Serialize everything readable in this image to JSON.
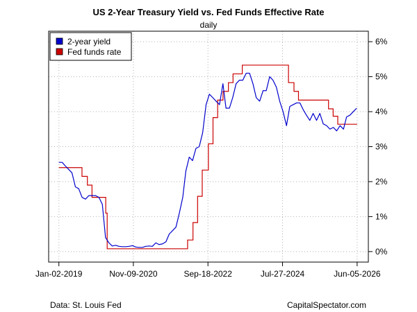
{
  "chart_data": {
    "type": "line",
    "title": "US 2-Year Treasury Yield vs. Fed Funds Effective Rate",
    "subtitle": "daily",
    "x_tick_labels": [
      "Jan-02-2019",
      "Nov-09-2020",
      "Sep-18-2022",
      "Jul-27-2024",
      "Jun-05-2026"
    ],
    "y_tick_labels": [
      "0%",
      "1%",
      "2%",
      "3%",
      "4%",
      "5%",
      "6%"
    ],
    "y_ticks": [
      0,
      1,
      2,
      3,
      4,
      5,
      6
    ],
    "ylim": [
      -0.3,
      6.3
    ],
    "xlim": [
      "2018-10-01",
      "2026-09-15"
    ],
    "grid": true,
    "legend_position": "top-left",
    "source_left": "Data: St. Louis Fed",
    "source_right": "CapitalSpectator.com",
    "series": [
      {
        "name": "2-year yield",
        "color": "#0000cc",
        "dates": [
          "2019-01-02",
          "2019-02-01",
          "2019-03-01",
          "2019-04-01",
          "2019-05-01",
          "2019-06-01",
          "2019-07-01",
          "2019-08-01",
          "2019-09-01",
          "2019-10-01",
          "2019-11-01",
          "2019-12-01",
          "2020-01-01",
          "2020-02-01",
          "2020-03-01",
          "2020-04-01",
          "2020-05-01",
          "2020-06-01",
          "2020-07-01",
          "2020-08-01",
          "2020-09-01",
          "2020-10-01",
          "2020-11-01",
          "2020-12-01",
          "2021-01-01",
          "2021-02-01",
          "2021-03-01",
          "2021-04-01",
          "2021-05-01",
          "2021-06-01",
          "2021-07-01",
          "2021-08-01",
          "2021-09-01",
          "2021-10-01",
          "2021-11-01",
          "2021-12-01",
          "2022-01-01",
          "2022-02-01",
          "2022-03-01",
          "2022-04-01",
          "2022-05-01",
          "2022-06-01",
          "2022-07-01",
          "2022-08-01",
          "2022-09-01",
          "2022-10-01",
          "2022-11-01",
          "2022-12-01",
          "2023-01-01",
          "2023-02-01",
          "2023-03-01",
          "2023-04-01",
          "2023-05-01",
          "2023-06-01",
          "2023-07-01",
          "2023-08-01",
          "2023-09-01",
          "2023-10-01",
          "2023-11-01",
          "2023-12-01",
          "2024-01-01",
          "2024-02-01",
          "2024-03-01",
          "2024-04-01",
          "2024-05-01",
          "2024-06-01",
          "2024-07-01",
          "2024-08-01",
          "2024-09-01",
          "2024-10-01",
          "2024-11-01",
          "2024-12-01",
          "2025-01-01",
          "2025-02-01",
          "2025-03-01",
          "2025-04-01",
          "2025-05-01",
          "2025-06-01",
          "2025-07-01",
          "2025-08-01",
          "2025-09-01",
          "2025-10-01",
          "2025-11-01",
          "2025-12-01",
          "2026-01-01",
          "2026-02-01",
          "2026-03-01",
          "2026-04-01",
          "2026-05-01",
          "2026-06-01"
        ],
        "values": [
          2.55,
          2.55,
          2.45,
          2.35,
          2.25,
          1.85,
          1.8,
          1.55,
          1.5,
          1.6,
          1.6,
          1.6,
          1.55,
          1.35,
          0.4,
          0.25,
          0.16,
          0.18,
          0.15,
          0.14,
          0.14,
          0.15,
          0.17,
          0.13,
          0.12,
          0.12,
          0.15,
          0.16,
          0.15,
          0.25,
          0.2,
          0.22,
          0.28,
          0.5,
          0.6,
          0.7,
          1.1,
          1.55,
          2.3,
          2.7,
          2.6,
          2.95,
          3.0,
          3.4,
          4.2,
          4.5,
          4.4,
          4.3,
          4.2,
          4.8,
          4.1,
          4.1,
          4.4,
          4.8,
          4.9,
          4.9,
          5.1,
          5.1,
          4.8,
          4.4,
          4.3,
          4.6,
          4.6,
          5.0,
          4.9,
          4.7,
          4.3,
          4.0,
          3.6,
          4.15,
          4.2,
          4.25,
          4.25,
          4.05,
          3.9,
          3.75,
          3.95,
          3.75,
          3.95,
          3.65,
          3.6,
          3.5,
          3.55,
          3.45,
          3.6,
          3.5,
          3.85,
          3.9,
          4.0,
          4.1
        ]
      },
      {
        "name": "Fed funds rate",
        "color": "#cc0000",
        "dates": [
          "2019-01-02",
          "2019-07-31",
          "2019-09-18",
          "2019-10-30",
          "2020-03-03",
          "2020-03-16",
          "2021-12-31",
          "2022-03-17",
          "2022-05-05",
          "2022-06-16",
          "2022-07-28",
          "2022-09-22",
          "2022-11-03",
          "2022-12-15",
          "2023-02-02",
          "2023-03-23",
          "2023-05-04",
          "2023-07-27",
          "2024-09-19",
          "2024-11-08",
          "2024-12-19",
          "2025-09-18",
          "2025-10-30",
          "2025-12-11",
          "2026-06-05"
        ],
        "values": [
          2.4,
          2.15,
          1.9,
          1.55,
          1.1,
          0.08,
          0.08,
          0.33,
          0.83,
          1.58,
          2.33,
          3.08,
          3.83,
          4.33,
          4.58,
          4.83,
          5.08,
          5.33,
          4.83,
          4.58,
          4.33,
          4.08,
          3.87,
          3.64,
          3.64
        ]
      }
    ]
  }
}
